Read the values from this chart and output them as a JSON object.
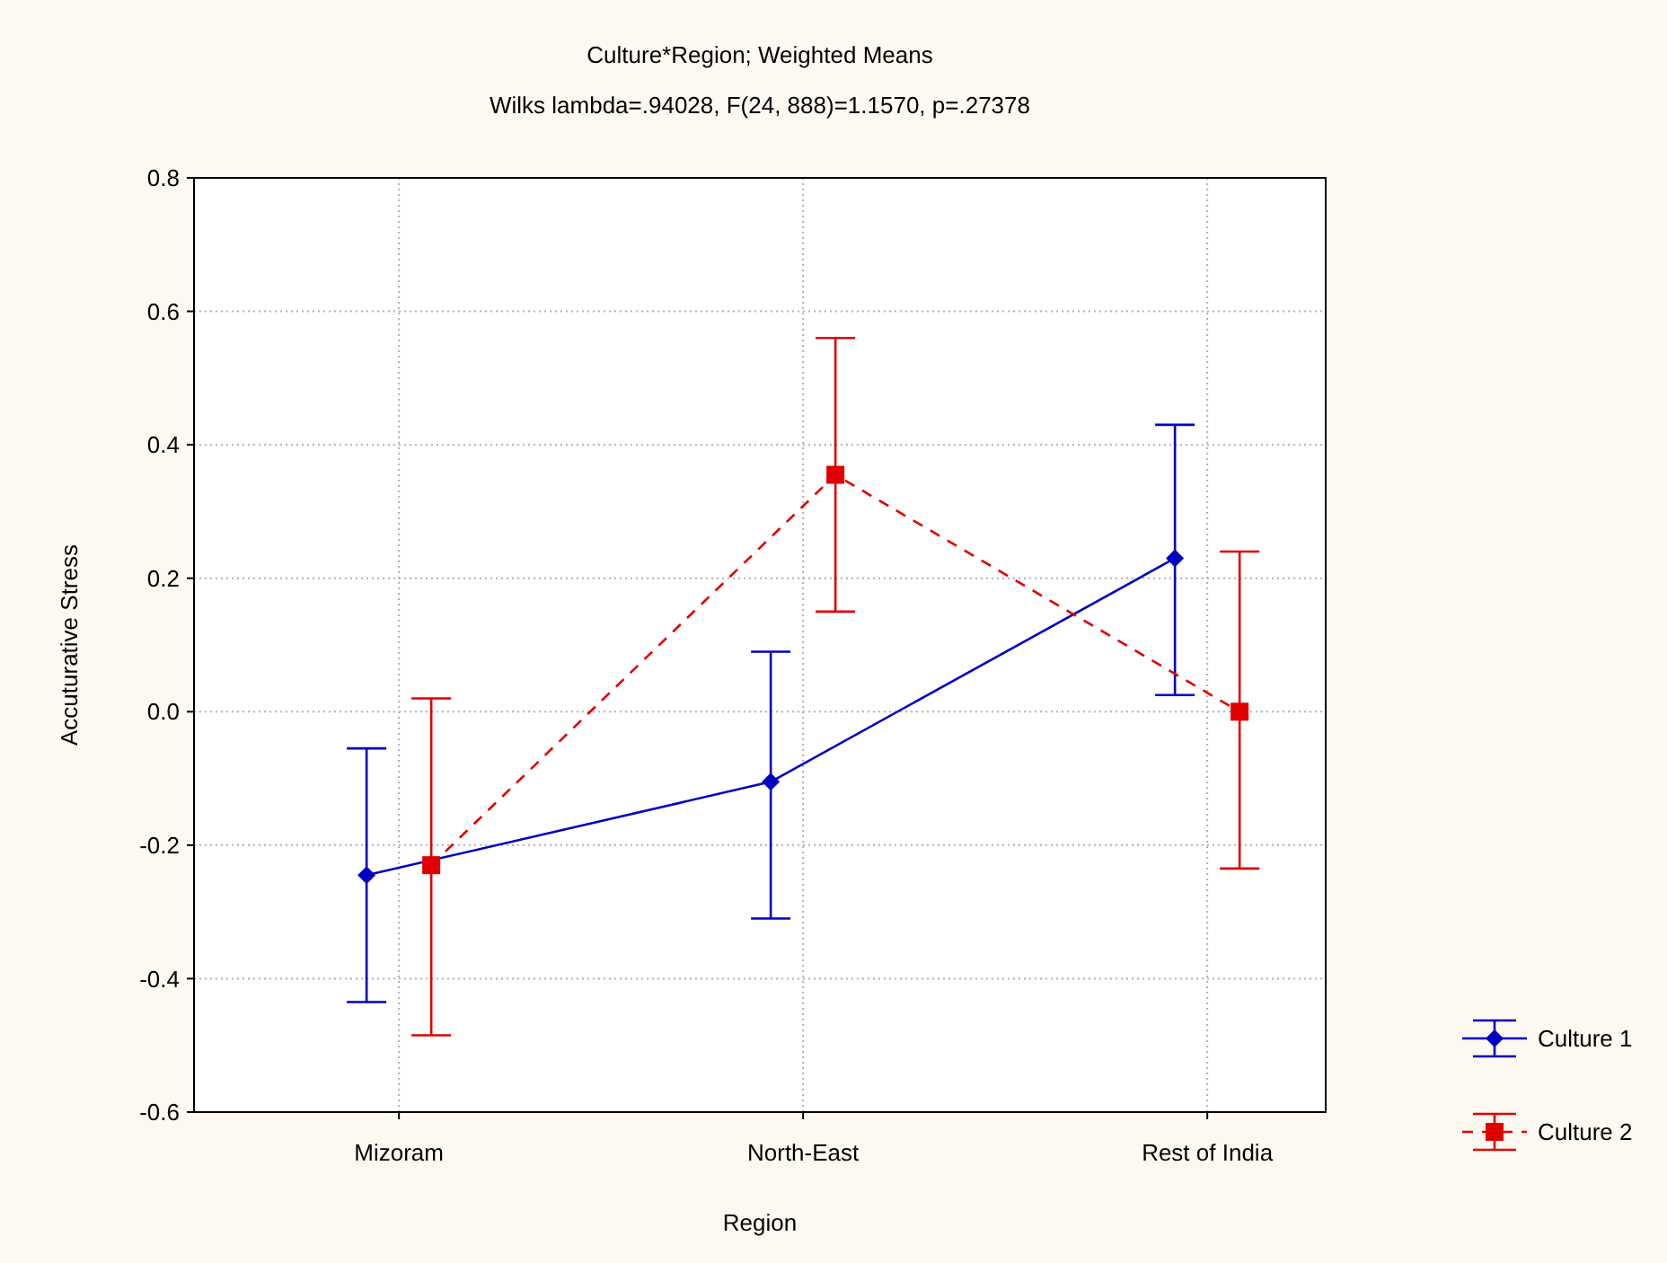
{
  "chart_data": {
    "type": "line",
    "title": "Culture*Region; Weighted Means",
    "subtitle": "Wilks lambda=.94028, F(24, 888)=1.1570, p=.27378",
    "xlabel": "Region",
    "ylabel": "Accuturative Stress",
    "categories": [
      "Mizoram",
      "North-East",
      "Rest of India"
    ],
    "series": [
      {
        "name": "Culture 1",
        "color": "#0000c0",
        "values": [
          -0.245,
          -0.105,
          0.23
        ],
        "errors": [
          [
            -0.435,
            -0.055
          ],
          [
            -0.31,
            0.09
          ],
          [
            0.025,
            0.43
          ]
        ],
        "marker": "diamond",
        "line_style": "solid"
      },
      {
        "name": "Culture 2",
        "color": "#e00000",
        "values": [
          -0.23,
          0.355,
          0.0
        ],
        "errors": [
          [
            -0.485,
            0.02
          ],
          [
            0.15,
            0.56
          ],
          [
            -0.235,
            0.24
          ]
        ],
        "marker": "square",
        "line_style": "dashed"
      }
    ],
    "ylim": [
      -0.6,
      0.8
    ],
    "yticks": [
      {
        "value": -0.6,
        "label": "-0.6"
      },
      {
        "value": -0.4,
        "label": "-0.4"
      },
      {
        "value": -0.2,
        "label": "-0.2"
      },
      {
        "value": 0,
        "label": "0.0"
      },
      {
        "value": 0.2,
        "label": "0.2"
      },
      {
        "value": 0.4,
        "label": "0.4"
      },
      {
        "value": 0.6,
        "label": "0.6"
      },
      {
        "value": 0.8,
        "label": "0.8"
      }
    ],
    "grid": true,
    "legend": "bottom right"
  }
}
